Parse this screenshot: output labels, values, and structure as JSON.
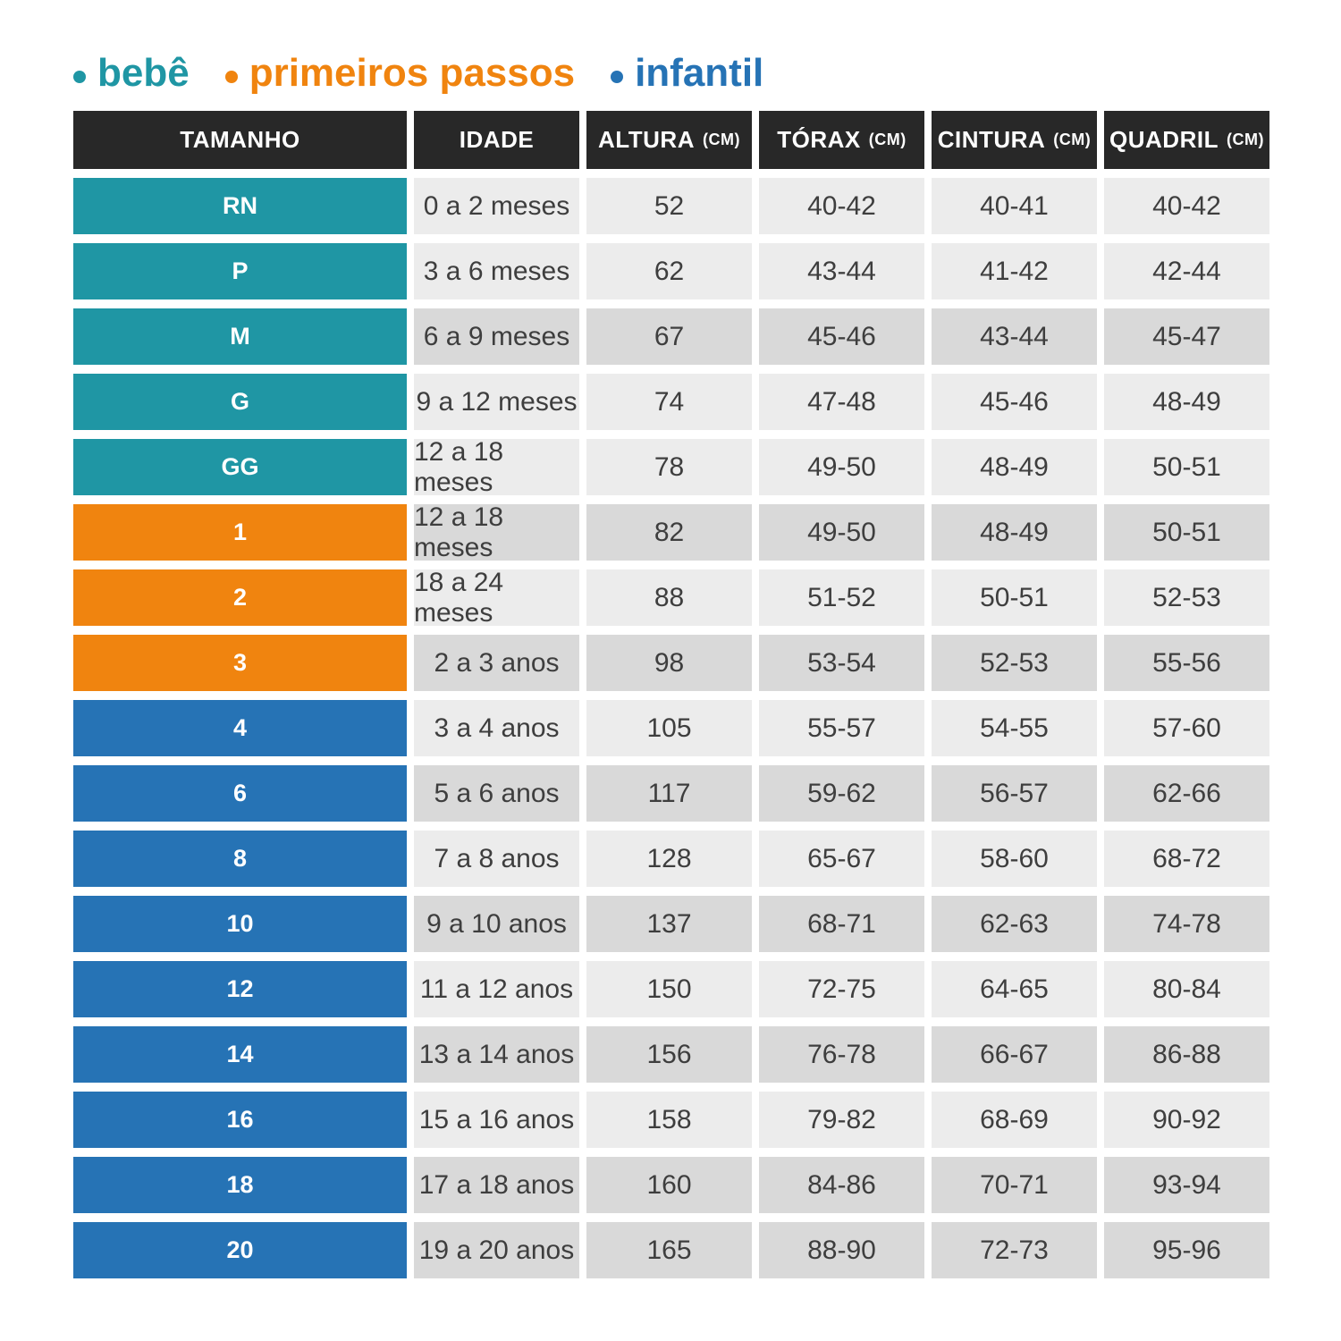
{
  "legend": {
    "items": [
      {
        "key": "bebe",
        "label": "bebê",
        "color": "#1F96A4"
      },
      {
        "key": "primeiros_passos",
        "label": "primeiros passos",
        "color": "#F0840F"
      },
      {
        "key": "infantil",
        "label": "infantil",
        "color": "#2673B5"
      }
    ]
  },
  "chart_data": {
    "type": "table",
    "columns": [
      {
        "label": "TAMANHO",
        "unit": ""
      },
      {
        "label": "IDADE",
        "unit": ""
      },
      {
        "label": "ALTURA",
        "unit": "(CM)"
      },
      {
        "label": "TÓRAX",
        "unit": "(CM)"
      },
      {
        "label": "CINTURA",
        "unit": "(CM)"
      },
      {
        "label": "QUADRIL",
        "unit": "(CM)"
      }
    ],
    "rows": [
      {
        "size": "RN",
        "group": "bebe",
        "shade": "light",
        "idade": "0 a 2 meses",
        "altura": "52",
        "torax": "40-42",
        "cintura": "40-41",
        "quadril": "40-42"
      },
      {
        "size": "P",
        "group": "bebe",
        "shade": "light",
        "idade": "3 a 6 meses",
        "altura": "62",
        "torax": "43-44",
        "cintura": "41-42",
        "quadril": "42-44"
      },
      {
        "size": "M",
        "group": "bebe",
        "shade": "dark",
        "idade": "6 a 9 meses",
        "altura": "67",
        "torax": "45-46",
        "cintura": "43-44",
        "quadril": "45-47"
      },
      {
        "size": "G",
        "group": "bebe",
        "shade": "light",
        "idade": "9 a 12 meses",
        "altura": "74",
        "torax": "47-48",
        "cintura": "45-46",
        "quadril": "48-49"
      },
      {
        "size": "GG",
        "group": "bebe",
        "shade": "light",
        "idade": "12 a 18 meses",
        "altura": "78",
        "torax": "49-50",
        "cintura": "48-49",
        "quadril": "50-51"
      },
      {
        "size": "1",
        "group": "primeiros_passos",
        "shade": "dark",
        "idade": "12 a 18 meses",
        "altura": "82",
        "torax": "49-50",
        "cintura": "48-49",
        "quadril": "50-51"
      },
      {
        "size": "2",
        "group": "primeiros_passos",
        "shade": "light",
        "idade": "18 a 24 meses",
        "altura": "88",
        "torax": "51-52",
        "cintura": "50-51",
        "quadril": "52-53"
      },
      {
        "size": "3",
        "group": "primeiros_passos",
        "shade": "dark",
        "idade": "2 a 3 anos",
        "altura": "98",
        "torax": "53-54",
        "cintura": "52-53",
        "quadril": "55-56"
      },
      {
        "size": "4",
        "group": "infantil",
        "shade": "light",
        "idade": "3 a 4 anos",
        "altura": "105",
        "torax": "55-57",
        "cintura": "54-55",
        "quadril": "57-60"
      },
      {
        "size": "6",
        "group": "infantil",
        "shade": "dark",
        "idade": "5 a 6 anos",
        "altura": "117",
        "torax": "59-62",
        "cintura": "56-57",
        "quadril": "62-66"
      },
      {
        "size": "8",
        "group": "infantil",
        "shade": "light",
        "idade": "7 a 8 anos",
        "altura": "128",
        "torax": "65-67",
        "cintura": "58-60",
        "quadril": "68-72"
      },
      {
        "size": "10",
        "group": "infantil",
        "shade": "dark",
        "idade": "9 a 10 anos",
        "altura": "137",
        "torax": "68-71",
        "cintura": "62-63",
        "quadril": "74-78"
      },
      {
        "size": "12",
        "group": "infantil",
        "shade": "light",
        "idade": "11 a 12 anos",
        "altura": "150",
        "torax": "72-75",
        "cintura": "64-65",
        "quadril": "80-84"
      },
      {
        "size": "14",
        "group": "infantil",
        "shade": "dark",
        "idade": "13 a 14 anos",
        "altura": "156",
        "torax": "76-78",
        "cintura": "66-67",
        "quadril": "86-88"
      },
      {
        "size": "16",
        "group": "infantil",
        "shade": "light",
        "idade": "15 a 16 anos",
        "altura": "158",
        "torax": "79-82",
        "cintura": "68-69",
        "quadril": "90-92"
      },
      {
        "size": "18",
        "group": "infantil",
        "shade": "dark",
        "idade": "17 a 18 anos",
        "altura": "160",
        "torax": "84-86",
        "cintura": "70-71",
        "quadril": "93-94"
      },
      {
        "size": "20",
        "group": "infantil",
        "shade": "dark",
        "idade": "19 a 20 anos",
        "altura": "165",
        "torax": "88-90",
        "cintura": "72-73",
        "quadril": "95-96"
      }
    ]
  },
  "colors": {
    "header_bg": "#282828",
    "header_text": "#FFFFFF",
    "row_light": "#ECECEC",
    "row_dark": "#D9D9D9",
    "cell_text": "#3E3E3E",
    "bebe": "#1F96A4",
    "primeiros_passos": "#F0840F",
    "infantil": "#2673B5"
  }
}
